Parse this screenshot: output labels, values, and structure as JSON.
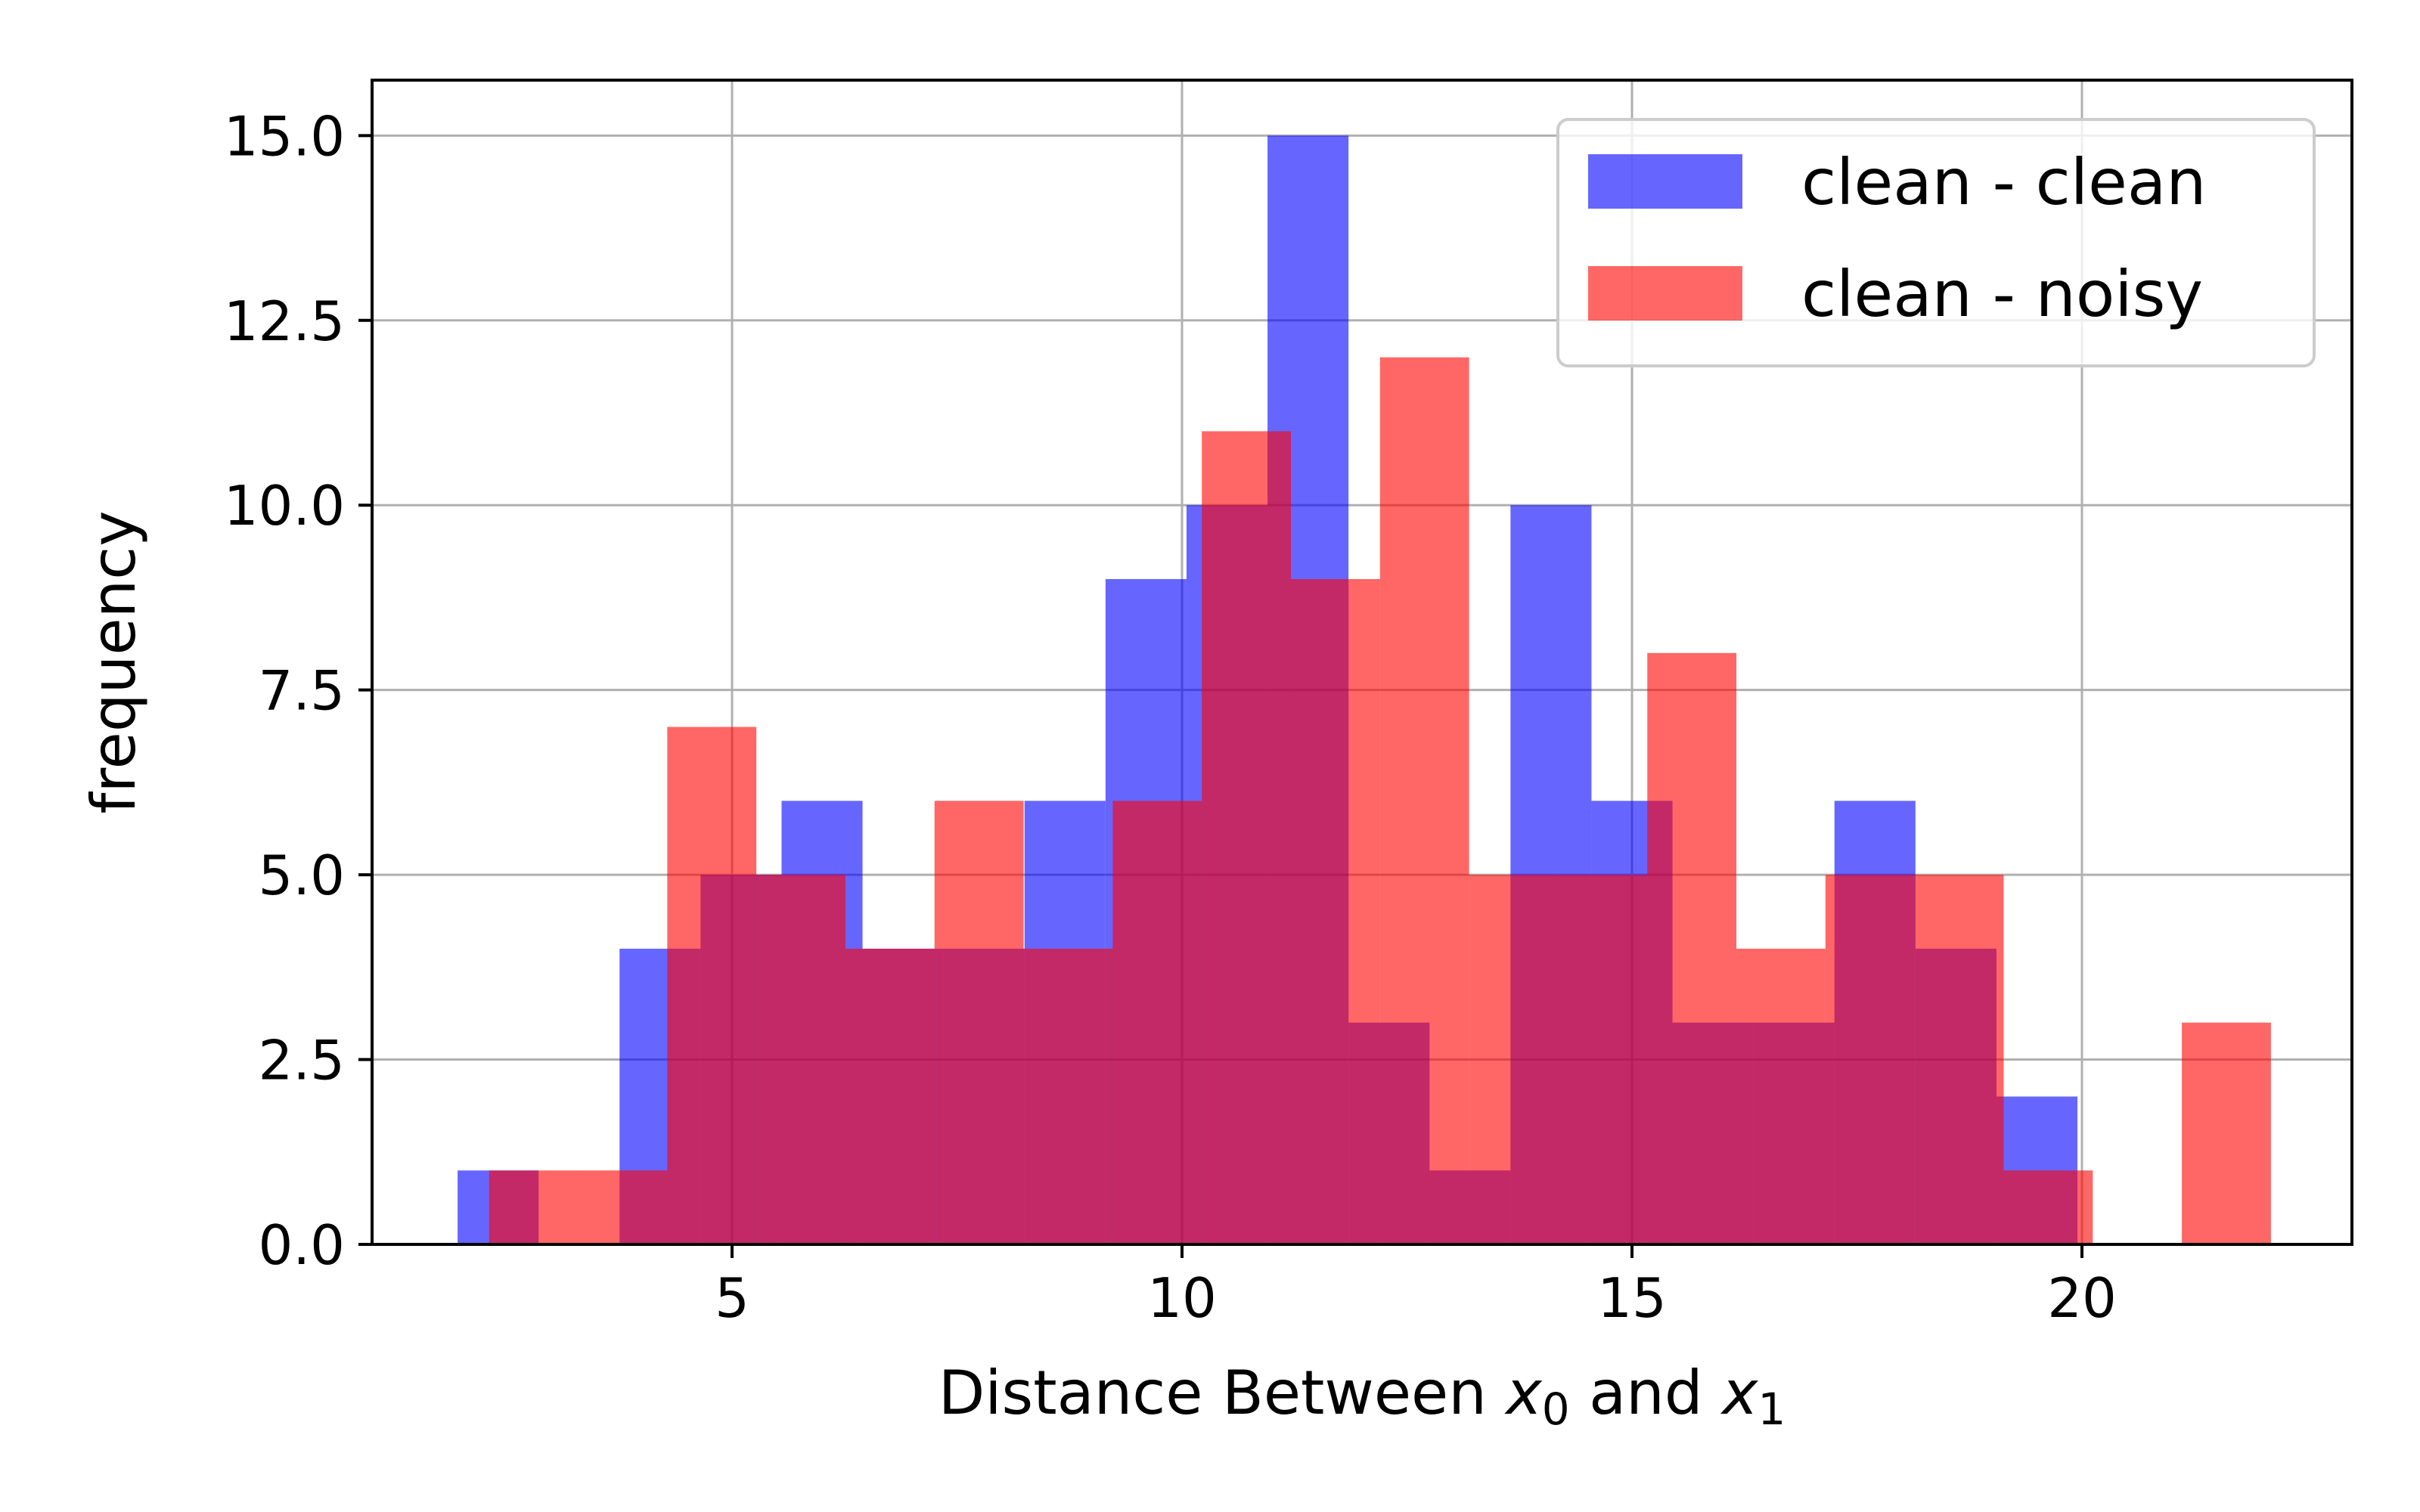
{
  "chart_data": {
    "type": "histogram",
    "xlabel": "Distance Between x0 and x1",
    "xlabel_parts": {
      "prefix": "Distance Between ",
      "var": "x",
      "sub0": "0",
      "mid": " and ",
      "sub1": "1"
    },
    "ylabel": "frequency",
    "xlim": [
      1.0,
      23.0
    ],
    "ylim": [
      0,
      15.75
    ],
    "xticks": [
      5,
      10,
      15,
      20
    ],
    "yticks": [
      0.0,
      2.5,
      5.0,
      7.5,
      10.0,
      12.5,
      15.0
    ],
    "xtick_labels": [
      "5",
      "10",
      "15",
      "20"
    ],
    "ytick_labels": [
      "0.0",
      "2.5",
      "5.0",
      "7.5",
      "10.0",
      "12.5",
      "15.0"
    ],
    "grid": true,
    "legend_position": "top-right",
    "alpha": 0.6,
    "series": [
      {
        "name": "clean - clean",
        "color": "#0000ff",
        "bin_edges": [
          1.95,
          2.85,
          3.75,
          4.65,
          5.55,
          6.45,
          7.35,
          8.25,
          9.15,
          10.05,
          10.95,
          11.85,
          12.75,
          13.65,
          14.55,
          15.45,
          16.35,
          17.25,
          18.15,
          19.05,
          19.95
        ],
        "counts": [
          1,
          0,
          4,
          5,
          6,
          4,
          4,
          6,
          9,
          10,
          15,
          3,
          1,
          10,
          6,
          3,
          3,
          6,
          4,
          2
        ]
      },
      {
        "name": "clean - noisy",
        "color": "#ff0000",
        "bin_edges": [
          2.3,
          3.29,
          4.28,
          5.27,
          6.26,
          7.25,
          8.24,
          9.23,
          10.22,
          11.21,
          12.2,
          13.19,
          14.18,
          15.17,
          16.16,
          17.15,
          18.14,
          19.13,
          20.12,
          21.11,
          22.1
        ],
        "counts": [
          1,
          1,
          7,
          5,
          4,
          6,
          4,
          6,
          11,
          9,
          12,
          5,
          5,
          8,
          4,
          5,
          5,
          1,
          0,
          3
        ]
      }
    ]
  }
}
